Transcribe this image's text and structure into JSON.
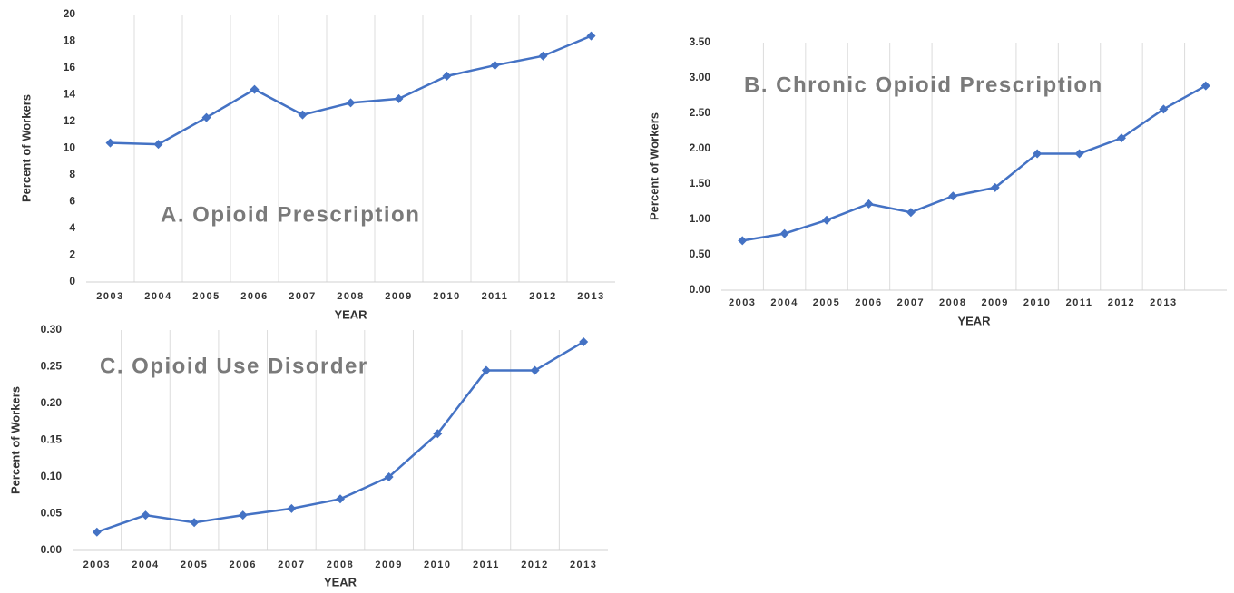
{
  "chart_data": [
    {
      "type": "line",
      "title": "A. Opioid Prescription",
      "x_label": "YEAR",
      "y_label": "Percent of Workers",
      "categories": [
        "2003",
        "2004",
        "2005",
        "2006",
        "2007",
        "2008",
        "2009",
        "2010",
        "2011",
        "2012",
        "2013"
      ],
      "values": [
        10.4,
        10.3,
        12.3,
        14.4,
        12.5,
        13.4,
        13.7,
        15.4,
        16.2,
        16.9,
        18.4
      ],
      "color": "#4472c4",
      "ylim": [
        0,
        20
      ],
      "yticks": [
        0,
        2,
        4,
        6,
        8,
        10,
        12,
        14,
        16,
        18,
        20
      ],
      "grid": "x"
    },
    {
      "type": "line",
      "title": "B. Chronic Opioid Prescription",
      "x_label": "YEAR",
      "y_label": "Percent of Workers",
      "categories": [
        "2003",
        "2004",
        "2005",
        "2006",
        "2007",
        "2008",
        "2009",
        "2010",
        "2011",
        "2012",
        "2013",
        null
      ],
      "values": [
        0.7,
        0.8,
        0.99,
        1.22,
        1.1,
        1.33,
        1.45,
        1.93,
        1.93,
        2.15,
        2.56,
        2.89
      ],
      "color": "#4472c4",
      "ylim": [
        0,
        3.5
      ],
      "yticks": [
        {
          "value": 0,
          "label": "0.00"
        },
        {
          "value": 0.5,
          "label": "0.50"
        },
        {
          "value": 1,
          "label": "1.00"
        },
        {
          "value": 1.5,
          "label": "1.50"
        },
        {
          "value": 2,
          "label": "2.00"
        },
        {
          "value": 2.5,
          "label": "2.50"
        },
        {
          "value": 3,
          "label": "3.00"
        },
        {
          "value": 3.5,
          "label": "3.50"
        }
      ],
      "grid": "x"
    },
    {
      "type": "line",
      "title": "C. Opioid Use Disorder",
      "x_label": "YEAR",
      "y_label": "Percent of Workers",
      "categories": [
        "2003",
        "2004",
        "2005",
        "2006",
        "2007",
        "2008",
        "2009",
        "2010",
        "2011",
        "2012",
        "2013"
      ],
      "values": [
        0.025,
        0.048,
        0.038,
        0.048,
        0.057,
        0.07,
        0.1,
        0.159,
        0.245,
        0.245,
        0.284
      ],
      "color": "#4472c4",
      "ylim": [
        0,
        0.3
      ],
      "yticks": [
        {
          "value": 0,
          "label": "0.00"
        },
        {
          "value": 0.05,
          "label": "0.05"
        },
        {
          "value": 0.1,
          "label": "0.10"
        },
        {
          "value": 0.15,
          "label": "0.15"
        },
        {
          "value": 0.2,
          "label": "0.20"
        },
        {
          "value": 0.25,
          "label": "0.25"
        },
        {
          "value": 0.3,
          "label": "0.30"
        }
      ],
      "grid": "x"
    }
  ]
}
